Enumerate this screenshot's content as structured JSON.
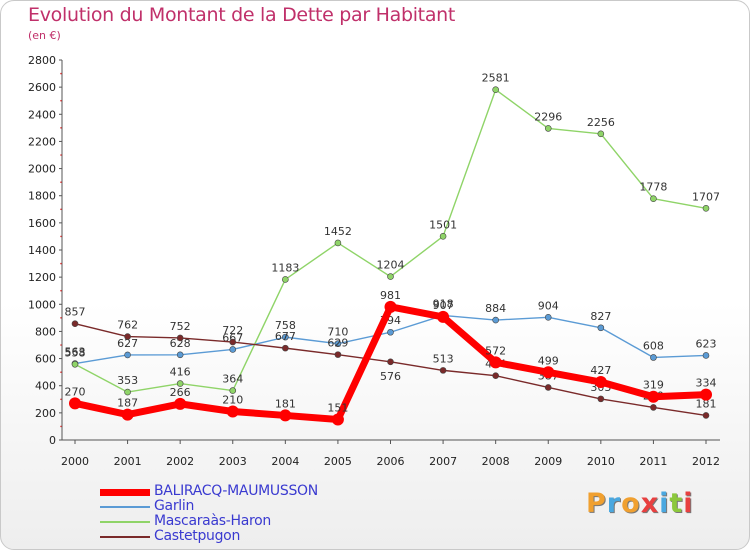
{
  "title": "Evolution du Montant de la Dette par Habitant",
  "subtitle": "(en €)",
  "logo": {
    "text": "Proxiti",
    "letter_colors": [
      "#f0a030",
      "#4aa8e0",
      "#f0a030",
      "#e84040",
      "#4aa8e0",
      "#8cc83c",
      "#e84040"
    ]
  },
  "chart_data": {
    "type": "line",
    "title": "Evolution du Montant de la Dette par Habitant",
    "subtitle": "(en €)",
    "xlabel": "",
    "ylabel": "",
    "x": [
      "2000",
      "2001",
      "2002",
      "2003",
      "2004",
      "2005",
      "2006",
      "2007",
      "2008",
      "2009",
      "2010",
      "2011",
      "2012"
    ],
    "ylim": [
      0,
      2800
    ],
    "yticks": [
      0,
      200,
      400,
      600,
      800,
      1000,
      1200,
      1400,
      1600,
      1800,
      2000,
      2200,
      2400,
      2600,
      2800
    ],
    "grid": false,
    "legend_position": "bottom-left",
    "series": [
      {
        "name": "Garlin",
        "color": "#5b9bd5",
        "values": [
          563,
          627,
          628,
          667,
          758,
          710,
          794,
          918,
          884,
          904,
          827,
          608,
          623
        ],
        "labels": [
          "563",
          "627",
          "628",
          "667",
          "758",
          "710",
          "794",
          "918",
          "884",
          "904",
          "827",
          "608",
          "623"
        ],
        "width": 1.4,
        "point": 3,
        "label_pos": [
          "above",
          "above",
          "above",
          "above",
          "above",
          "above",
          "above",
          "above",
          "above",
          "above",
          "above",
          "above",
          "above"
        ]
      },
      {
        "name": "Mascaraàs-Haron",
        "color": "#8fd468",
        "values": [
          558,
          353,
          416,
          364,
          1183,
          1452,
          1204,
          1501,
          2581,
          2296,
          2256,
          1778,
          1707
        ],
        "labels": [
          "558",
          "353",
          "416",
          "364",
          "1183",
          "1452",
          "1204",
          "1501",
          "2581",
          "2296",
          "2256",
          "1778",
          "1707"
        ],
        "width": 1.4,
        "point": 3,
        "label_pos": [
          "above",
          "above",
          "above",
          "above",
          "above",
          "above",
          "above",
          "above",
          "above",
          "above",
          "above",
          "above",
          "above"
        ]
      },
      {
        "name": "Castetpugon",
        "color": "#7a2a2a",
        "values": [
          857,
          762,
          752,
          722,
          677,
          629,
          576,
          513,
          474,
          387,
          303,
          240,
          181
        ],
        "labels": [
          "857",
          "762",
          "752",
          "722",
          "677",
          "629",
          "576",
          "513",
          "474",
          "387",
          "303",
          "240",
          "181"
        ],
        "width": 1.4,
        "point": 3,
        "label_pos": [
          "above",
          "above",
          "above",
          "above",
          "above",
          "above",
          "below",
          "above",
          "above",
          "above",
          "above",
          "above",
          "above"
        ]
      },
      {
        "name": "BALIRACQ-MAUMUSSON",
        "color": "#ff0000",
        "values": [
          270,
          187,
          266,
          210,
          181,
          151,
          981,
          907,
          572,
          499,
          427,
          319,
          334
        ],
        "labels": [
          "270",
          "187",
          "266",
          "210",
          "181",
          "151",
          "981",
          "907",
          "572",
          "499",
          "427",
          "319",
          "334"
        ],
        "width": 7,
        "point": 6,
        "label_pos": [
          "above",
          "above",
          "above",
          "above",
          "above",
          "above",
          "above",
          "above",
          "above",
          "above",
          "above",
          "above",
          "above"
        ]
      }
    ],
    "legend": [
      "BALIRACQ-MAUMUSSON",
      "Garlin",
      "Mascaraàs-Haron",
      "Castetpugon"
    ]
  }
}
